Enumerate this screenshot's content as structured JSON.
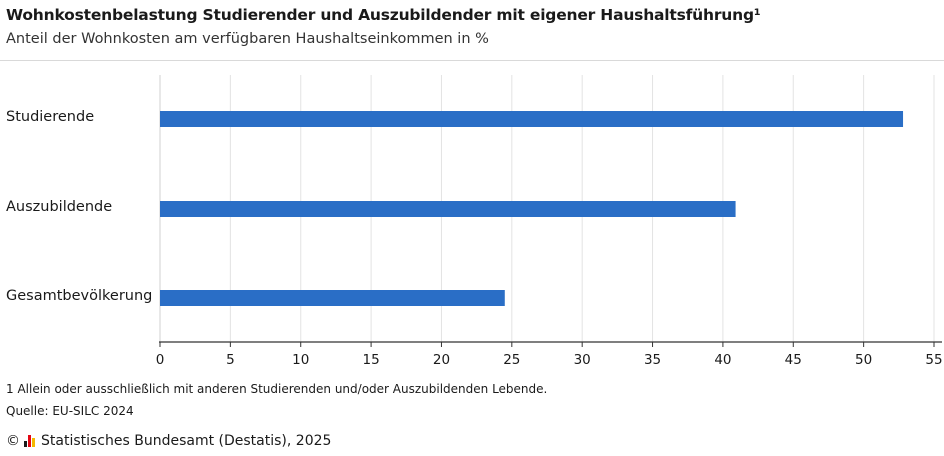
{
  "chart_data": {
    "type": "bar",
    "orientation": "horizontal",
    "title": "Wohnkostenbelastung Studierender und Auszubildender mit eigener Haushaltsführung¹",
    "subtitle": "Anteil der Wohnkosten am verfügbaren Haushaltseinkommen in %",
    "categories": [
      "Studierende",
      "Auszubildende",
      "Gesamtbevölkerung"
    ],
    "values": [
      52.8,
      40.9,
      24.5
    ],
    "xlim": [
      0,
      55
    ],
    "xticks": [
      "0",
      "5",
      "10",
      "15",
      "20",
      "25",
      "30",
      "35",
      "40",
      "45",
      "50",
      "55"
    ],
    "grid": true,
    "bar_color": "#2a6ec6"
  },
  "footer": {
    "footnote": "1 Allein oder ausschließlich mit anderen Studierenden und/oder Auszubildenden Lebende.",
    "source": "Quelle: EU-SILC 2024",
    "copyright_symbol": "©",
    "copyright": "Statistisches Bundesamt (Destatis), 2025",
    "logo_colors": [
      "#1a1a1a",
      "#e30613",
      "#f5b800"
    ]
  }
}
